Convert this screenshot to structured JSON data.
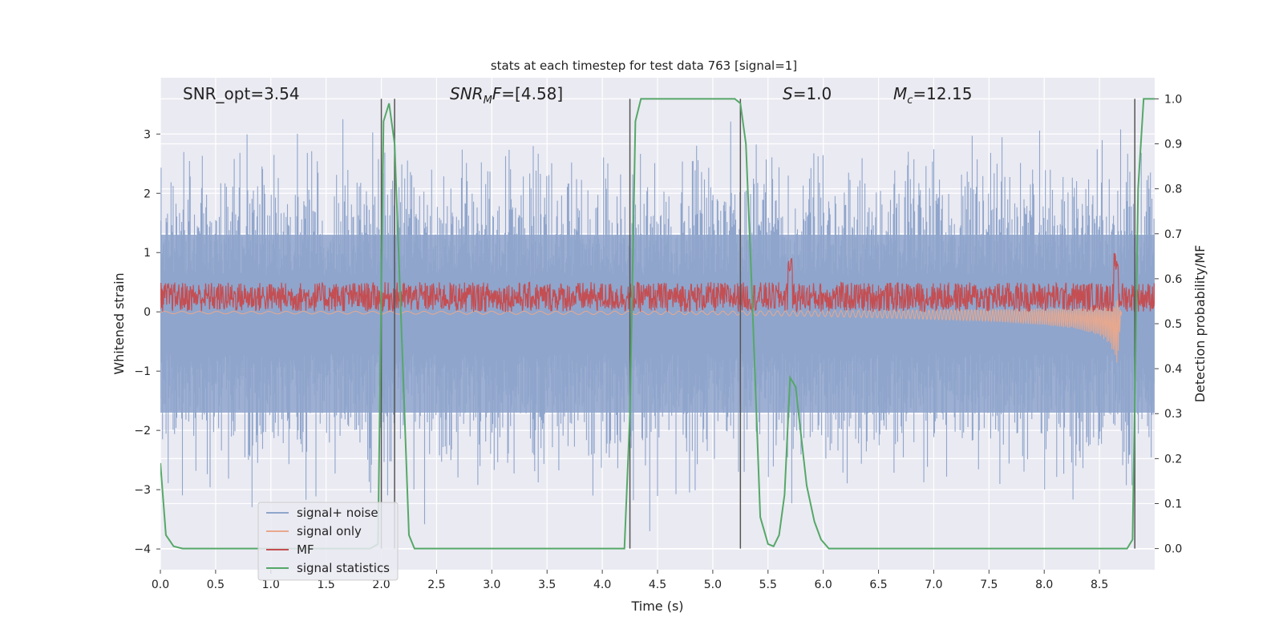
{
  "chart_data": {
    "type": "line",
    "title": "stats at each timestep for test data 763 [signal=1]",
    "xlabel": "Time (s)",
    "ylabel_left": "Whitened strain",
    "ylabel_right": "Detection probability/MF",
    "xlim": [
      0.0,
      9.0
    ],
    "ylim_left": [
      -4.35,
      3.95
    ],
    "ylim_right": [
      -0.047,
      1.047
    ],
    "x_ticks": [
      0.0,
      0.5,
      1.0,
      1.5,
      2.0,
      2.5,
      3.0,
      3.5,
      4.0,
      4.5,
      5.0,
      5.5,
      6.0,
      6.5,
      7.0,
      7.5,
      8.0,
      8.5
    ],
    "x_tick_labels": [
      "0.0",
      "0.5",
      "1.0",
      "1.5",
      "2.0",
      "2.5",
      "3.0",
      "3.5",
      "4.0",
      "4.5",
      "5.0",
      "5.5",
      "6.0",
      "6.5",
      "7.0",
      "7.5",
      "8.0",
      "8.5"
    ],
    "y_left_ticks": [
      -4,
      -3,
      -2,
      -1,
      0,
      1,
      2,
      3
    ],
    "y_left_tick_labels": [
      "−4",
      "−3",
      "−2",
      "−1",
      "0",
      "1",
      "2",
      "3"
    ],
    "y_right_ticks": [
      0.0,
      0.1,
      0.2,
      0.3,
      0.4,
      0.5,
      0.6,
      0.7,
      0.8,
      0.9,
      1.0
    ],
    "y_right_tick_labels": [
      "0.0",
      "0.1",
      "0.2",
      "0.3",
      "0.4",
      "0.5",
      "0.6",
      "0.7",
      "0.8",
      "0.9",
      "1.0"
    ],
    "grid": true,
    "legend_position": "lower-left",
    "annotations": {
      "snr_opt": "SNR_opt=3.54",
      "snr_mf": "=[4.58]",
      "s": "=1.0",
      "mc": "=12.15"
    },
    "series": [
      {
        "name": "signal+ noise",
        "axis": "left",
        "color": "#8fa5cc",
        "note_values": "dense noise, approx. uniform amplitude over whole range",
        "range_y": [
          -3.7,
          3.6
        ]
      },
      {
        "name": "signal only",
        "axis": "left",
        "color": "#e8a88e",
        "x": [
          0.0,
          5.0,
          6.0,
          7.0,
          7.5,
          8.0,
          8.3,
          8.5,
          8.6,
          8.66,
          8.7
        ],
        "envelope": [
          0.02,
          0.03,
          0.05,
          0.08,
          0.1,
          0.14,
          0.18,
          0.25,
          0.35,
          0.55,
          0.0
        ]
      },
      {
        "name": "MF",
        "axis": "left",
        "color": "#c44e52",
        "center": 0.25,
        "half_width": 0.25,
        "peak_x": [
          5.7,
          8.65
        ],
        "peak_y": [
          0.9,
          1.0
        ]
      },
      {
        "name": "signal statistics",
        "axis": "right",
        "color": "#55a868",
        "x": [
          0.0,
          0.05,
          0.12,
          0.2,
          1.0,
          1.9,
          1.97,
          2.02,
          2.07,
          2.12,
          2.18,
          2.25,
          2.3,
          4.0,
          4.2,
          4.25,
          4.3,
          4.35,
          4.5,
          5.2,
          5.25,
          5.3,
          5.35,
          5.43,
          5.5,
          5.55,
          5.6,
          5.65,
          5.7,
          5.75,
          5.8,
          5.85,
          5.92,
          5.98,
          6.05,
          8.75,
          8.8,
          8.85,
          8.9,
          9.0
        ],
        "y": [
          0.19,
          0.03,
          0.005,
          0.0,
          0.0,
          0.0,
          0.01,
          0.95,
          0.99,
          0.9,
          0.5,
          0.03,
          0.0,
          0.0,
          0.0,
          0.3,
          0.95,
          1.0,
          1.0,
          1.0,
          0.99,
          0.9,
          0.6,
          0.07,
          0.01,
          0.005,
          0.03,
          0.12,
          0.38,
          0.36,
          0.25,
          0.14,
          0.06,
          0.02,
          0.0,
          0.0,
          0.02,
          0.8,
          1.0,
          1.0
        ]
      }
    ],
    "vertical_lines_x": [
      2.0,
      2.12,
      4.25,
      5.25,
      8.82
    ]
  }
}
